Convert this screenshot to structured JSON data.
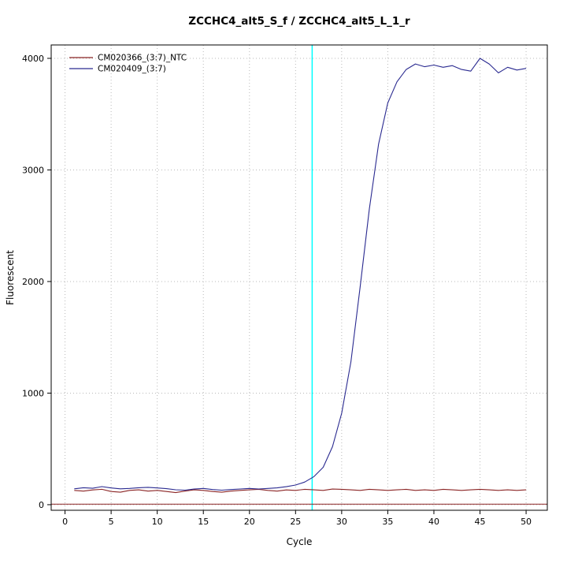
{
  "chart_data": {
    "type": "line",
    "title": "ZCCHC4_alt5_S_f / ZCCHC4_alt5_L_1_r",
    "xlabel": "Cycle",
    "ylabel": "Fluorescent",
    "xlim": [
      -1.5,
      52.3
    ],
    "ylim": [
      -50,
      4120
    ],
    "xticks": [
      0,
      5,
      10,
      15,
      20,
      25,
      30,
      35,
      40,
      45,
      50
    ],
    "yticks": [
      0,
      1000,
      2000,
      3000,
      4000
    ],
    "grid": {
      "show": true,
      "style": "dotted",
      "color": "#b9b9b9"
    },
    "legend_position": "top-left",
    "threshold_line": {
      "y": 5,
      "color": "#8b2525"
    },
    "vline": {
      "x": 26.8,
      "color": "#00ffff"
    },
    "x_start": 1,
    "x_step": 1,
    "series": [
      {
        "name": "CM020366_(3:7)_NTC",
        "color": "#8b2525",
        "values": [
          128,
          122,
          132,
          138,
          118,
          112,
          128,
          133,
          122,
          128,
          118,
          108,
          122,
          133,
          128,
          118,
          112,
          122,
          128,
          133,
          138,
          128,
          122,
          132,
          128,
          138,
          133,
          128,
          140,
          138,
          133,
          128,
          138,
          133,
          128,
          133,
          138,
          128,
          133,
          128,
          138,
          133,
          128,
          133,
          138,
          133,
          128,
          133,
          128,
          133
        ]
      },
      {
        "name": "CM020409_(3:7)",
        "color": "#2a2a90",
        "values": [
          142,
          152,
          147,
          162,
          150,
          142,
          146,
          152,
          156,
          150,
          144,
          134,
          130,
          140,
          146,
          136,
          130,
          136,
          141,
          146,
          141,
          146,
          151,
          161,
          176,
          203,
          252,
          335,
          520,
          820,
          1280,
          1950,
          2650,
          3230,
          3600,
          3790,
          3900,
          3950,
          3925,
          3940,
          3920,
          3935,
          3900,
          3885,
          4000,
          3950,
          3870,
          3920,
          3895,
          3910
        ]
      }
    ]
  }
}
